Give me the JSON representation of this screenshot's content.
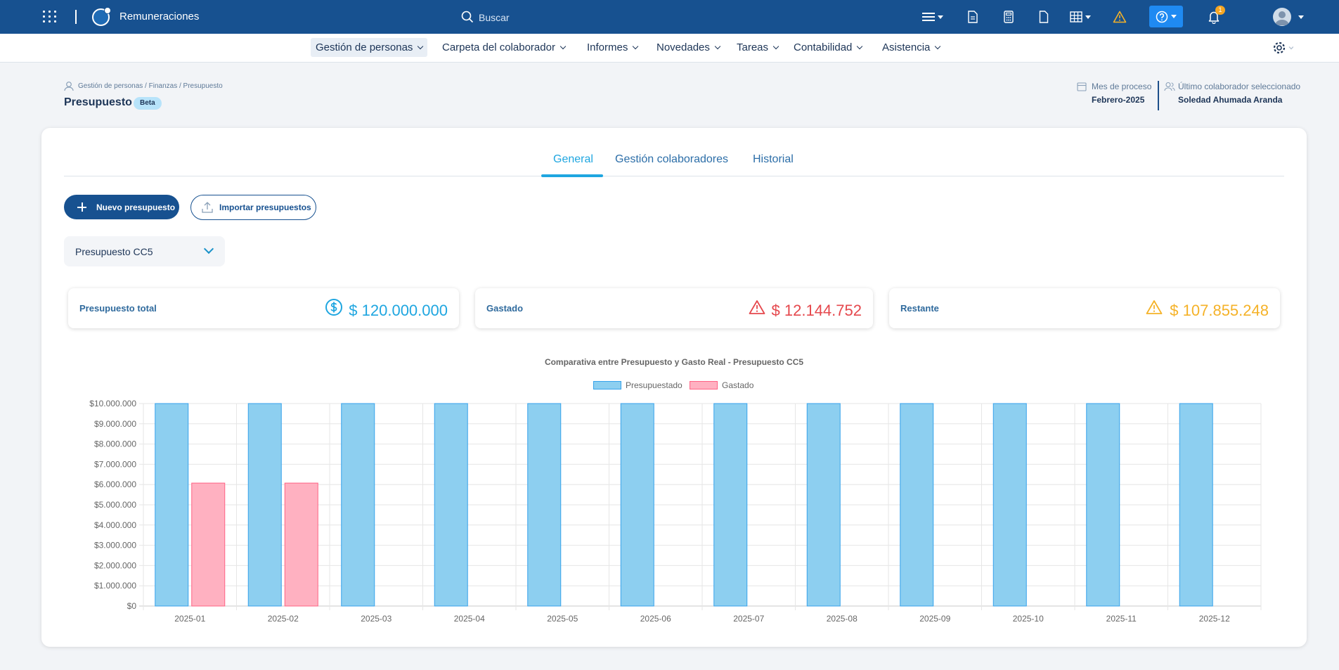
{
  "topbar": {
    "app_name": "Remuneraciones",
    "search_placeholder": "Buscar",
    "notification_count": "1",
    "icons": [
      "apps-grid-icon",
      "company-logo",
      "search-icon",
      "menu-icon",
      "document-icon",
      "calculator-icon",
      "file-icon",
      "table-icon",
      "warning-icon",
      "help-icon",
      "bell-icon",
      "user-avatar"
    ]
  },
  "nav": {
    "items": [
      {
        "label": "Gestión de personas"
      },
      {
        "label": "Carpeta del colaborador"
      },
      {
        "label": "Informes"
      },
      {
        "label": "Novedades"
      },
      {
        "label": "Tareas"
      },
      {
        "label": "Contabilidad"
      },
      {
        "label": "Asistencia"
      }
    ]
  },
  "header": {
    "breadcrumb": "Gestión de personas / Finanzas / Presupuesto",
    "title": "Presupuesto",
    "badge": "Beta",
    "process_month_label": "Mes de proceso",
    "process_month_value": "Febrero-2025",
    "last_employee_label": "Último colaborador seleccionado",
    "last_employee_value": "Soledad Ahumada Aranda"
  },
  "tabs": [
    {
      "label": "General"
    },
    {
      "label": "Gestión colaboradores"
    },
    {
      "label": "Historial"
    }
  ],
  "actions": {
    "new_budget": "Nuevo presupuesto",
    "import_budgets": "Importar presupuestos"
  },
  "budget_select": {
    "value": "Presupuesto CC5"
  },
  "kpis": [
    {
      "label": "Presupuesto total",
      "value": "$ 120.000.000",
      "icon": "dollar-circle-icon",
      "color": "#1fa6e0"
    },
    {
      "label": "Gastado",
      "value": "$ 12.144.752",
      "icon": "warning-triangle-icon",
      "color": "#e5484d"
    },
    {
      "label": "Restante",
      "value": "$ 107.855.248",
      "icon": "warning-triangle-icon",
      "color": "#f5b228"
    }
  ],
  "chart_data": {
    "type": "bar",
    "title": "Comparativa entre Presupuesto y Gasto Real - Presupuesto CC5",
    "categories": [
      "2025-01",
      "2025-02",
      "2025-03",
      "2025-04",
      "2025-05",
      "2025-06",
      "2025-07",
      "2025-08",
      "2025-09",
      "2025-10",
      "2025-11",
      "2025-12"
    ],
    "series": [
      {
        "name": "Presupuestado",
        "values": [
          10000000,
          10000000,
          10000000,
          10000000,
          10000000,
          10000000,
          10000000,
          10000000,
          10000000,
          10000000,
          10000000,
          10000000
        ],
        "color": "#8dcff0",
        "border": "#36a2eb"
      },
      {
        "name": "Gastado",
        "values": [
          6072376,
          6072376,
          0,
          0,
          0,
          0,
          0,
          0,
          0,
          0,
          0,
          0
        ],
        "color": "#ffb1c1",
        "border": "#ff6384"
      }
    ],
    "ylim": [
      0,
      10000000
    ],
    "yticks": [
      "$0",
      "$1.000.000",
      "$2.000.000",
      "$3.000.000",
      "$4.000.000",
      "$5.000.000",
      "$6.000.000",
      "$7.000.000",
      "$8.000.000",
      "$9.000.000",
      "$10.000.000"
    ],
    "grid": true,
    "legend": "top"
  }
}
